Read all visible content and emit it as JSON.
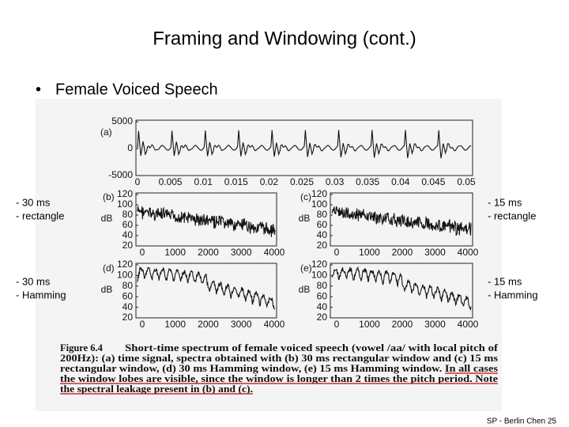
{
  "header": {
    "title": "Framing and Windowing (cont.)"
  },
  "bullet": "Female Voiced Speech",
  "side_labels": {
    "left": [
      [
        "- 30 ms",
        "- rectangle"
      ],
      [
        "- 30 ms",
        "- Hamming"
      ]
    ],
    "right": [
      [
        "- 15 ms",
        "- rectangle"
      ],
      [
        "- 15 ms",
        "- Hamming"
      ]
    ]
  },
  "figure": {
    "panels": [
      {
        "label": "(a)",
        "yticks": [
          "5000",
          "0",
          "-5000"
        ],
        "xticks": [
          "0",
          "0.005",
          "0.01",
          "0.015",
          "0.02",
          "0.025",
          "0.03",
          "0.035",
          "0.04",
          "0.045",
          "0.05"
        ]
      },
      {
        "label": "(b)",
        "ylabel": "dB",
        "yticks": [
          "120",
          "100",
          "80",
          "60",
          "40",
          "20"
        ],
        "xticks": [
          "0",
          "1000",
          "2000",
          "3000",
          "4000"
        ]
      },
      {
        "label": "(c)",
        "ylabel": "dB",
        "yticks": [
          "120",
          "100",
          "80",
          "60",
          "40",
          "20"
        ],
        "xticks": [
          "0",
          "1000",
          "2000",
          "3000",
          "4000"
        ]
      },
      {
        "label": "(d)",
        "ylabel": "dB",
        "yticks": [
          "120",
          "100",
          "80",
          "60",
          "40",
          "20"
        ],
        "xticks": [
          "0",
          "1000",
          "2000",
          "3000",
          "4000"
        ]
      },
      {
        "label": "(e)",
        "ylabel": "dB",
        "yticks": [
          "120",
          "100",
          "80",
          "60",
          "40",
          "20"
        ],
        "xticks": [
          "0",
          "1000",
          "2000",
          "3000",
          "4000"
        ]
      }
    ],
    "caption": {
      "figure_number": "Figure 6.4",
      "lines": [
        "Short-time spectrum of female voiced speech (vowel /aa/ with local pitch of",
        "200Hz): (a) time signal, spectra obtained with (b) 30 ms rectangular window and (c) 15 ms",
        "rectangular window, (d) 30 ms Hamming window, (e) 15 ms Hamming window. In all cases",
        "the window lobes are visible, since the window is longer than 2 times the pitch period. Note",
        "the spectral leakage present in (b) and (c)."
      ]
    }
  },
  "footer": "SP - Berlin Chen 25"
}
